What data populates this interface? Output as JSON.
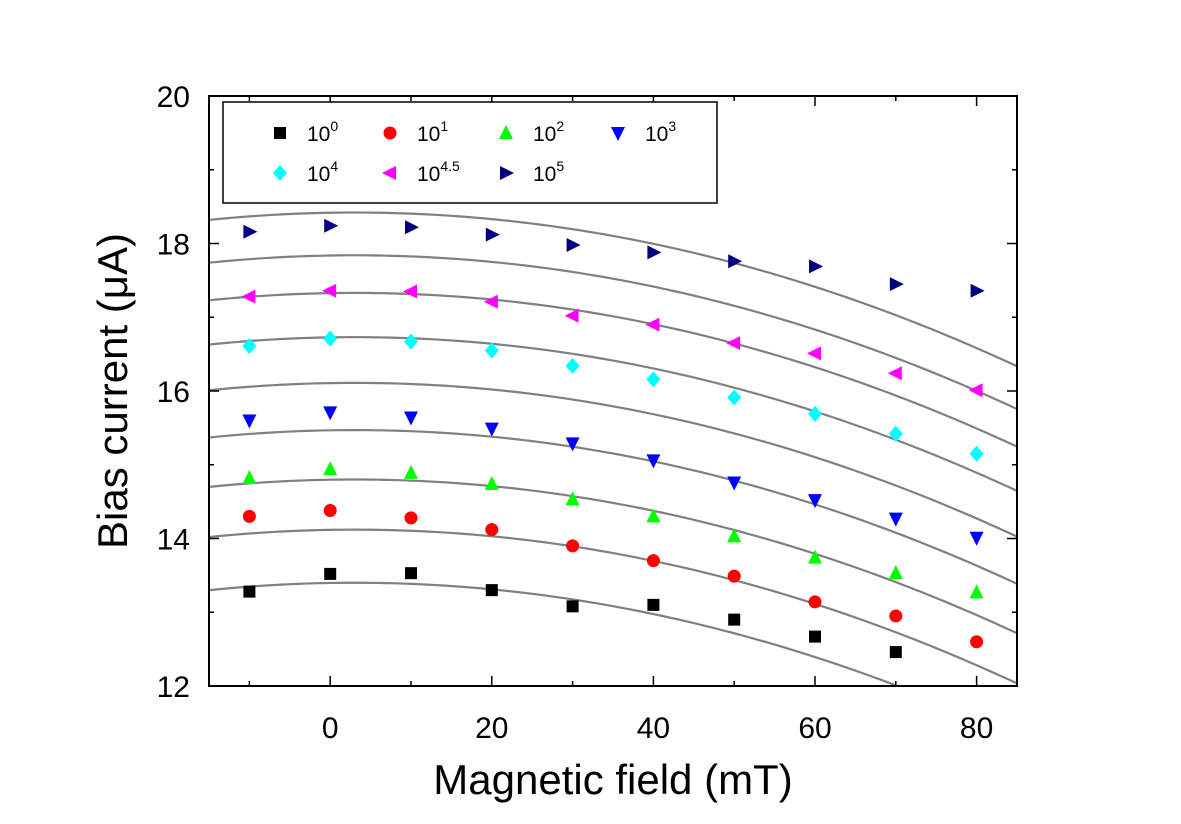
{
  "chart_data": {
    "type": "scatter",
    "title": "",
    "xlabel": "Magnetic field (mT)",
    "ylabel_main": "Bias current (",
    "ylabel_mu": "μ",
    "ylabel_tail": "A)",
    "xlim": [
      -15,
      85
    ],
    "ylim": [
      12,
      20
    ],
    "xticks": [
      0,
      20,
      40,
      60,
      80
    ],
    "xminor": [
      -10,
      10,
      30,
      50,
      70
    ],
    "yticks": [
      12,
      14,
      16,
      18,
      20
    ],
    "ytick_labels": [
      "12",
      "14",
      "16",
      "18",
      "20"
    ],
    "xtick_labels": [
      "0",
      "20",
      "40",
      "60",
      "80"
    ],
    "legend_position": "top-left",
    "x": [
      -10,
      0,
      10,
      20,
      30,
      40,
      50,
      60,
      70,
      80
    ],
    "series": [
      {
        "name": "10^0",
        "base": "10",
        "exp": "0",
        "marker": "square",
        "color": "#000000",
        "values": [
          13.28,
          13.52,
          13.53,
          13.3,
          13.08,
          13.1,
          12.9,
          12.67,
          12.46,
          null
        ]
      },
      {
        "name": "10^1",
        "base": "10",
        "exp": "1",
        "marker": "circle",
        "color": "#ff0000",
        "values": [
          14.3,
          14.38,
          14.28,
          14.12,
          13.9,
          13.7,
          13.49,
          13.14,
          12.95,
          12.6
        ]
      },
      {
        "name": "10^2",
        "base": "10",
        "exp": "2",
        "marker": "triangle-up",
        "color": "#00ff00",
        "values": [
          14.82,
          14.94,
          14.89,
          14.74,
          14.53,
          14.3,
          14.03,
          13.74,
          13.53,
          13.27
        ]
      },
      {
        "name": "10^3",
        "base": "10",
        "exp": "3",
        "marker": "triangle-down",
        "color": "#0000ff",
        "values": [
          15.6,
          15.71,
          15.64,
          15.49,
          15.29,
          15.06,
          14.76,
          14.52,
          14.27,
          14.01
        ]
      },
      {
        "name": "10^4",
        "base": "10",
        "exp": "4",
        "marker": "diamond",
        "color": "#00ffff",
        "values": [
          16.61,
          16.71,
          16.67,
          16.55,
          16.34,
          16.16,
          15.91,
          15.69,
          15.42,
          15.15
        ]
      },
      {
        "name": "10^4.5",
        "base": "10",
        "exp": "4.5",
        "marker": "triangle-left",
        "color": "#ff00ff",
        "values": [
          17.28,
          17.36,
          17.35,
          17.21,
          17.02,
          16.9,
          16.65,
          16.51,
          16.24,
          16.01
        ]
      },
      {
        "name": "10^5",
        "base": "10",
        "exp": "5",
        "marker": "triangle-right",
        "color": "#000080",
        "values": [
          18.16,
          18.24,
          18.22,
          18.12,
          17.98,
          17.88,
          17.76,
          17.69,
          17.45,
          17.36
        ]
      }
    ],
    "fit_curves": {
      "color": "#808080",
      "peak_x": 3,
      "curvature_per_mT2": 0.00031,
      "peaks": [
        13.4,
        14.12,
        14.8,
        15.47,
        16.11,
        16.73,
        17.33,
        17.84,
        18.42
      ]
    }
  }
}
